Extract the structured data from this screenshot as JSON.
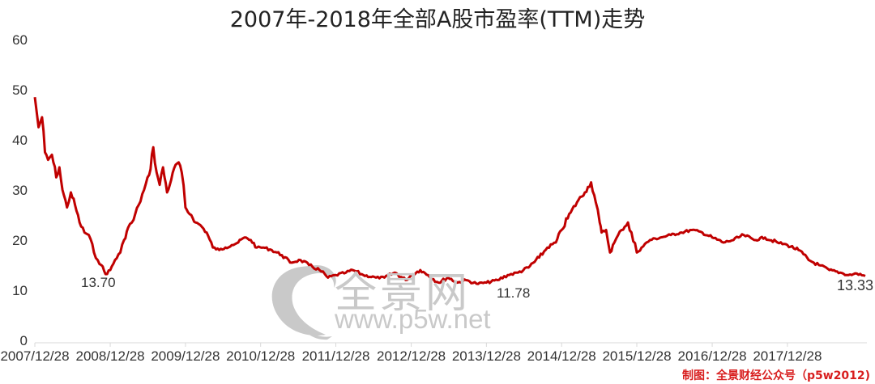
{
  "title": "2007年-2018年全部A股市盈率(TTM)走势",
  "watermark": {
    "name": "全景网",
    "url": "www.p5w.net"
  },
  "credit": "制图：全景财经公众号（p5w2012)",
  "colors": {
    "line": "#c00000",
    "credit": "#d81e1e",
    "watermark": "#c9c9c9",
    "axis": "#d9d9d9",
    "text": "#333333"
  },
  "annotations": {
    "low_2008": "13.70",
    "low_2014": "11.78",
    "last": "13.33"
  },
  "chart_data": {
    "type": "line",
    "title": "2007年-2018年全部A股市盈率(TTM)走势",
    "xlabel": "",
    "ylabel": "",
    "ylim": [
      0,
      60
    ],
    "yticks": [
      0,
      10,
      20,
      30,
      40,
      50,
      60
    ],
    "xtick_labels": [
      "2007/12/28",
      "2008/12/28",
      "2009/12/28",
      "2010/12/28",
      "2011/12/28",
      "2012/12/28",
      "2013/12/28",
      "2014/12/28",
      "2015/12/28",
      "2016/12/28",
      "2017/12/28"
    ],
    "grid": false,
    "legend": "none",
    "series": [
      {
        "name": "全部A股市盈率(TTM)",
        "x": [
          "2007-12-28",
          "2008-01-15",
          "2008-02-01",
          "2008-02-15",
          "2008-03-01",
          "2008-03-20",
          "2008-04-10",
          "2008-04-25",
          "2008-05-10",
          "2008-06-01",
          "2008-06-20",
          "2008-07-10",
          "2008-08-01",
          "2008-08-25",
          "2008-09-15",
          "2008-10-10",
          "2008-10-28",
          "2008-11-15",
          "2008-12-05",
          "2008-12-28",
          "2009-01-20",
          "2009-02-15",
          "2009-03-05",
          "2009-03-25",
          "2009-04-20",
          "2009-05-15",
          "2009-06-10",
          "2009-07-05",
          "2009-07-25",
          "2009-08-10",
          "2009-08-25",
          "2009-09-10",
          "2009-09-30",
          "2009-10-20",
          "2009-11-10",
          "2009-11-25",
          "2009-12-10",
          "2009-12-28",
          "2010-01-10",
          "2010-01-25",
          "2010-02-15",
          "2010-03-10",
          "2010-04-10",
          "2010-05-10",
          "2010-06-10",
          "2010-07-10",
          "2010-08-10",
          "2010-09-10",
          "2010-10-10",
          "2010-11-10",
          "2010-12-10",
          "2011-01-10",
          "2011-02-20",
          "2011-04-10",
          "2011-05-20",
          "2011-07-10",
          "2011-08-20",
          "2011-10-10",
          "2011-11-20",
          "2011-12-28",
          "2012-02-15",
          "2012-03-20",
          "2012-05-10",
          "2012-07-10",
          "2012-08-20",
          "2012-10-10",
          "2012-12-01",
          "2012-12-28",
          "2013-02-10",
          "2013-03-20",
          "2013-05-10",
          "2013-06-25",
          "2013-08-10",
          "2013-09-20",
          "2013-11-10",
          "2013-12-28",
          "2014-02-20",
          "2014-04-10",
          "2014-05-30",
          "2014-07-20",
          "2014-09-10",
          "2014-10-20",
          "2014-11-30",
          "2014-12-28",
          "2015-02-10",
          "2015-03-20",
          "2015-04-20",
          "2015-05-20",
          "2015-06-12",
          "2015-07-01",
          "2015-07-10",
          "2015-08-01",
          "2015-08-20",
          "2015-09-10",
          "2015-10-15",
          "2015-11-15",
          "2015-12-28",
          "2016-01-20",
          "2016-03-01",
          "2016-04-20",
          "2016-06-10",
          "2016-08-01",
          "2016-09-20",
          "2016-11-10",
          "2016-12-28",
          "2017-02-20",
          "2017-04-10",
          "2017-05-30",
          "2017-07-20",
          "2017-09-10",
          "2017-11-10",
          "2017-12-28",
          "2018-02-20",
          "2018-04-10",
          "2018-05-30",
          "2018-07-20",
          "2018-09-10",
          "2018-10-20",
          "2018-11-30",
          "2019-01-10"
        ],
        "values": [
          49.0,
          43.0,
          45.0,
          38.0,
          36.5,
          37.5,
          33.0,
          35.0,
          30.5,
          27.0,
          30.0,
          27.5,
          24.0,
          22.0,
          21.5,
          18.0,
          16.5,
          15.5,
          13.7,
          14.5,
          16.5,
          18.0,
          20.5,
          23.0,
          24.5,
          27.5,
          30.5,
          33.5,
          39.0,
          34.0,
          31.5,
          35.0,
          30.0,
          32.5,
          35.5,
          36.0,
          34.0,
          27.0,
          26.0,
          25.5,
          24.0,
          23.5,
          22.0,
          19.0,
          18.5,
          19.0,
          19.5,
          20.0,
          21.0,
          20.5,
          19.0,
          19.0,
          18.5,
          17.5,
          16.0,
          16.5,
          15.5,
          14.5,
          13.0,
          13.5,
          14.0,
          14.5,
          13.5,
          13.0,
          13.0,
          14.0,
          12.5,
          13.5,
          14.5,
          13.5,
          12.0,
          13.0,
          12.0,
          12.5,
          11.78,
          12.0,
          12.5,
          13.5,
          14.0,
          15.0,
          17.0,
          19.0,
          20.0,
          22.5,
          26.0,
          28.5,
          30.0,
          32.0,
          28.0,
          24.0,
          22.0,
          22.5,
          18.0,
          20.0,
          22.5,
          24.0,
          18.0,
          19.0,
          20.5,
          21.0,
          21.5,
          22.0,
          22.5,
          22.0,
          21.0,
          20.0,
          20.5,
          21.5,
          20.5,
          21.0,
          20.0,
          19.5,
          18.5,
          16.5,
          15.5,
          14.5,
          14.0,
          13.5,
          13.8,
          13.33
        ]
      }
    ]
  }
}
